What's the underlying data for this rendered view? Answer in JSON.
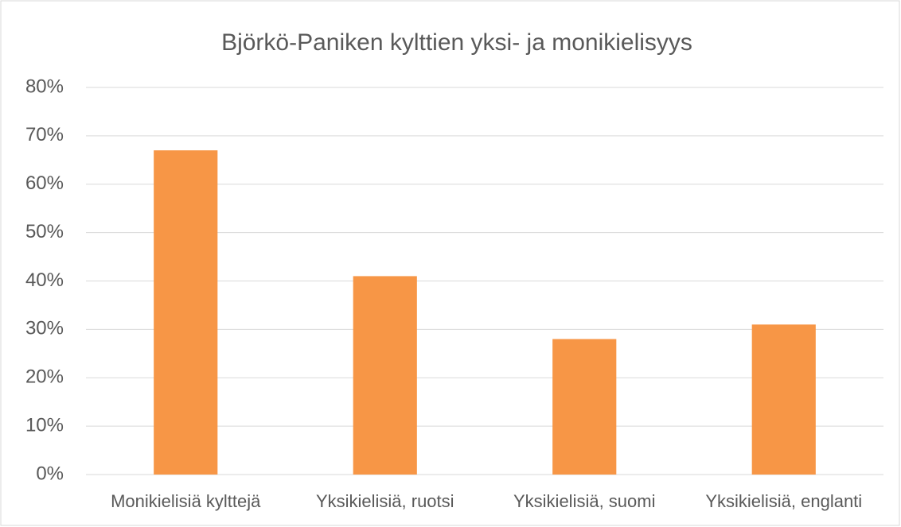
{
  "chart_data": {
    "type": "bar",
    "title": "Björkö-Paniken kylttien yksi- ja monikielisyys",
    "categories": [
      "Monikielisiä kylttejä",
      "Yksikielisiä, ruotsi",
      "Yksikielisiä, suomi",
      "Yksikielisiä, englanti"
    ],
    "values": [
      67,
      41,
      28,
      31
    ],
    "color": "#f79646",
    "ylim": [
      0,
      80
    ],
    "yticks": [
      {
        "value": 0,
        "label": "0%"
      },
      {
        "value": 10,
        "label": "10%"
      },
      {
        "value": 20,
        "label": "20%"
      },
      {
        "value": 30,
        "label": "30%"
      },
      {
        "value": 40,
        "label": "40%"
      },
      {
        "value": 50,
        "label": "50%"
      },
      {
        "value": 60,
        "label": "60%"
      },
      {
        "value": 70,
        "label": "70%"
      },
      {
        "value": 80,
        "label": "80%"
      }
    ],
    "grid": true
  }
}
